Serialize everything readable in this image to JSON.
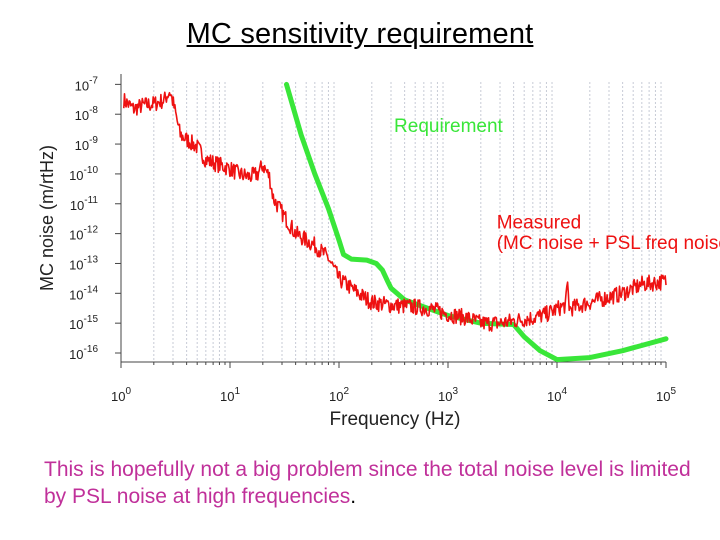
{
  "title": "MC sensitivity requirement",
  "caption": {
    "text": "This is hopefully not a big problem since the total noise level is limited by PSL noise at high frequencies",
    "end": "."
  },
  "colors": {
    "requirement": "#39e639",
    "measured": "#ee1111",
    "caption": "#c0309a",
    "grid": "#c7cbd6"
  },
  "chart_data": {
    "type": "line",
    "title": "MC sensitivity requirement",
    "xlabel": "Frequency (Hz)",
    "ylabel": "MC noise (m/rtHz)",
    "xscale": "log",
    "yscale": "log",
    "xlim": [
      1,
      100000
    ],
    "ylim": [
      5e-17,
      1.2e-07
    ],
    "xticks": [
      {
        "base": "10",
        "exp": "0"
      },
      {
        "base": "10",
        "exp": "1"
      },
      {
        "base": "10",
        "exp": "2"
      },
      {
        "base": "10",
        "exp": "3"
      },
      {
        "base": "10",
        "exp": "4"
      },
      {
        "base": "10",
        "exp": "5"
      }
    ],
    "yticks": [
      {
        "base": "10",
        "exp": "-7"
      },
      {
        "base": "10",
        "exp": "-8"
      },
      {
        "base": "10",
        "exp": "-9"
      },
      {
        "base": "10",
        "exp": "-10"
      },
      {
        "base": "10",
        "exp": "-11"
      },
      {
        "base": "10",
        "exp": "-12"
      },
      {
        "base": "10",
        "exp": "-13"
      },
      {
        "base": "10",
        "exp": "-14"
      },
      {
        "base": "10",
        "exp": "-15"
      },
      {
        "base": "10",
        "exp": "-16"
      }
    ],
    "grid": true,
    "series": [
      {
        "name": "Requirement",
        "color": "#39e639",
        "x": [
          33,
          45,
          60,
          80,
          100,
          110,
          130,
          180,
          220,
          250,
          280,
          300,
          400,
          600,
          1000,
          2000,
          4000,
          5000,
          7000,
          10000,
          20000,
          40000,
          100000
        ],
        "y": [
          1e-07,
          2e-09,
          1e-10,
          7e-12,
          6e-13,
          2e-13,
          1.4e-13,
          1.3e-13,
          1e-13,
          6e-14,
          2.5e-14,
          1.5e-14,
          6e-15,
          3.5e-15,
          1.8e-15,
          1e-15,
          9e-16,
          3.5e-16,
          1.2e-16,
          6e-17,
          7e-17,
          1.2e-16,
          3e-16
        ]
      },
      {
        "name": "Measured (MC noise + PSL freq noise)",
        "color": "#ee1111",
        "x": [
          1.06,
          1.3,
          1.6,
          2,
          2.5,
          2.8,
          3.0,
          3.5,
          5,
          6,
          8,
          10,
          12,
          15,
          18,
          20,
          23,
          25,
          30,
          40,
          60,
          80,
          100,
          150,
          200,
          300,
          500,
          700,
          1000,
          1500,
          2000,
          3000,
          4000,
          6000,
          8000,
          10000,
          12000,
          12500,
          13000,
          20000,
          40000,
          60000,
          100000
        ],
        "y": [
          3e-08,
          1.5e-08,
          2e-08,
          2.2e-08,
          3e-08,
          6e-08,
          2.5e-08,
          2e-09,
          8e-10,
          3e-10,
          2e-10,
          1.5e-10,
          1e-10,
          8e-11,
          1e-10,
          2e-10,
          8e-11,
          1.5e-11,
          5e-12,
          1e-12,
          4e-13,
          1.5e-13,
          3e-14,
          1e-14,
          5e-15,
          4e-15,
          3.5e-15,
          3e-15,
          2e-15,
          1.5e-15,
          1e-15,
          1e-15,
          1.2e-15,
          1.5e-15,
          2e-15,
          3e-15,
          4e-15,
          2e-14,
          3e-15,
          5e-15,
          1e-14,
          2e-14,
          2.5e-14
        ]
      }
    ],
    "annotations": [
      {
        "text": "Requirement",
        "color": "#39e639",
        "x": 320,
        "y": 2.5e-09
      },
      {
        "text": "Measured",
        "color": "#ee1111",
        "x": 2800,
        "y": 1.5e-12
      },
      {
        "text": "(MC noise + PSL freq noise)",
        "color": "#ee1111",
        "x": 2800,
        "y": 3e-13
      }
    ]
  }
}
